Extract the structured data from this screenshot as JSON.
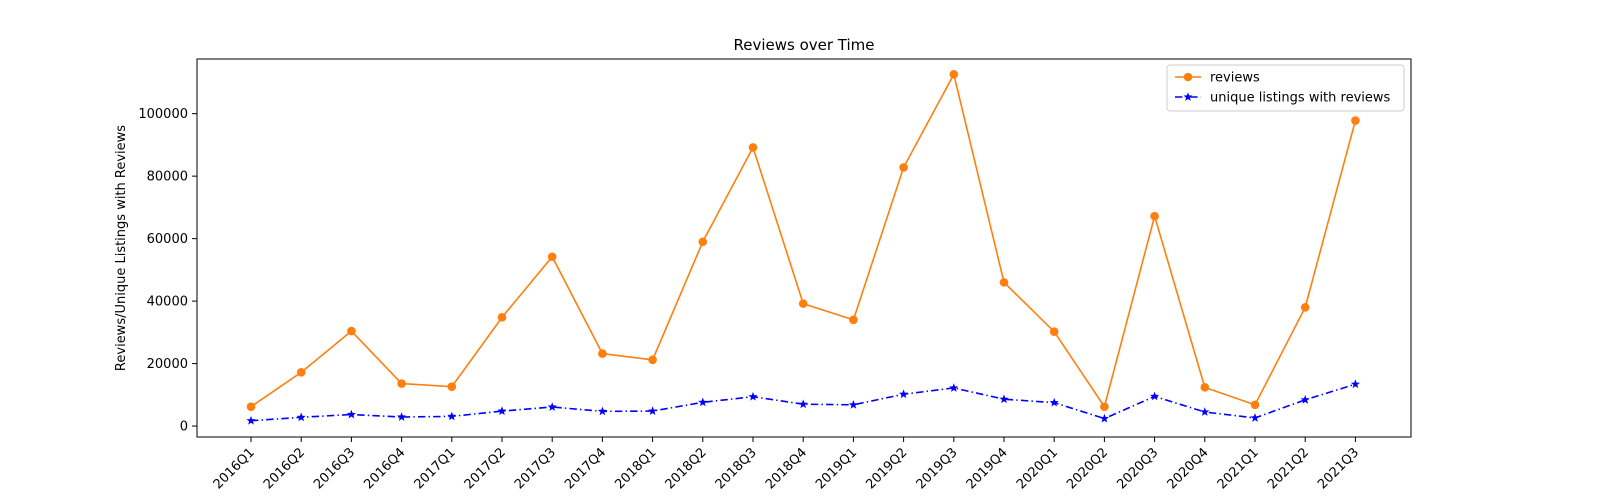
{
  "chart_data": {
    "type": "line",
    "title": "Reviews over Time",
    "xlabel": "",
    "ylabel": "Reviews/Unique Listings with Reviews",
    "categories": [
      "2016Q1",
      "2016Q2",
      "2016Q3",
      "2016Q4",
      "2017Q1",
      "2017Q2",
      "2017Q3",
      "2017Q4",
      "2018Q1",
      "2018Q2",
      "2018Q3",
      "2018Q4",
      "2019Q1",
      "2019Q2",
      "2019Q3",
      "2019Q4",
      "2020Q1",
      "2020Q2",
      "2020Q3",
      "2020Q4",
      "2021Q1",
      "2021Q2",
      "2021Q3"
    ],
    "yticks": [
      0,
      20000,
      40000,
      60000,
      80000,
      100000
    ],
    "ylim": [
      -3500,
      117500
    ],
    "grid": false,
    "legend_position": "top-right",
    "series": [
      {
        "name": "reviews",
        "color": "#ff7f0e",
        "line_style": "solid",
        "marker": "circle",
        "values": [
          6200,
          17200,
          30400,
          13600,
          12600,
          34800,
          54200,
          23200,
          21200,
          59000,
          89200,
          39200,
          34000,
          82800,
          112600,
          46000,
          30200,
          6200,
          67200,
          12400,
          6800,
          38000,
          97800
        ]
      },
      {
        "name": "unique listings with reviews",
        "color": "#0000ff",
        "line_style": "dashdot",
        "marker": "star",
        "values": [
          1700,
          2800,
          3700,
          2900,
          3100,
          4800,
          6100,
          4700,
          4800,
          7600,
          9400,
          7000,
          6800,
          10200,
          12200,
          8600,
          7500,
          2400,
          9500,
          4500,
          2600,
          8400,
          13400
        ]
      }
    ]
  }
}
